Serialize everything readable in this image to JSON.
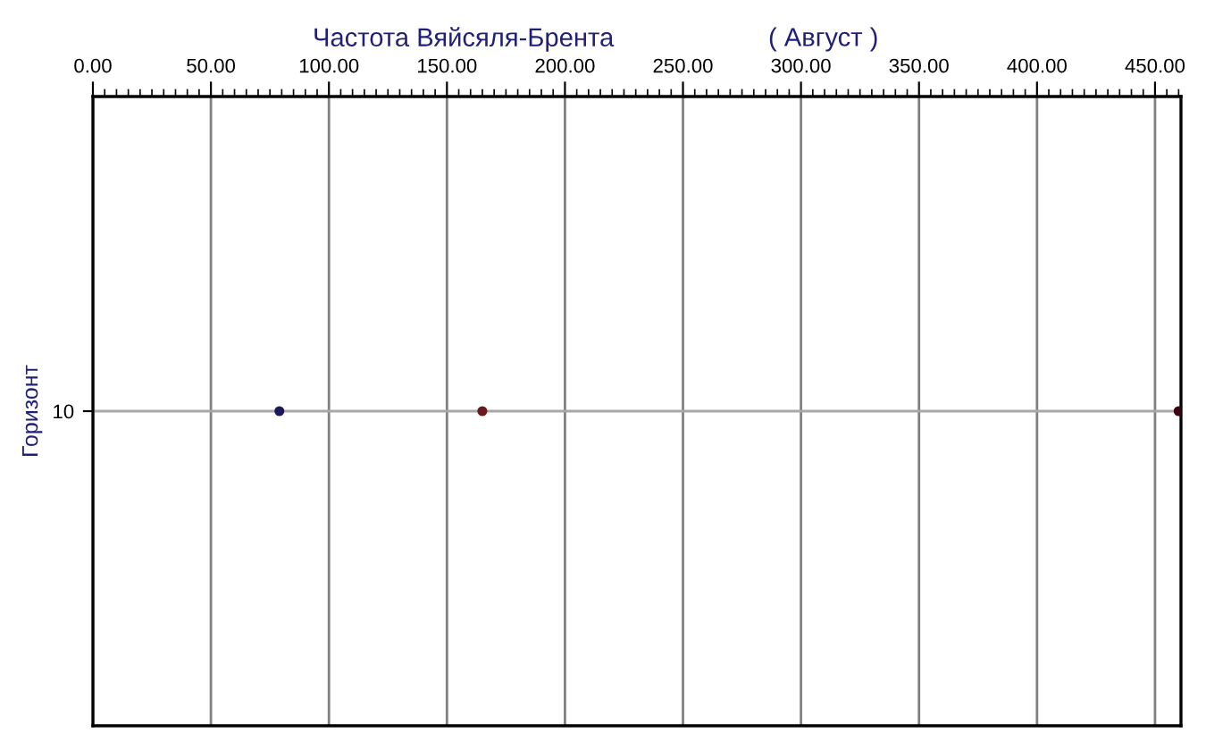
{
  "chart_data": {
    "type": "scatter",
    "orientation": "horizontal",
    "title": "Частота Вяйсяля-Брента",
    "subtitle": "( Август )",
    "ylabel": "Горизонт",
    "categories": [
      "10"
    ],
    "series": [
      {
        "color": "#1a1a5a",
        "values": [
          79
        ]
      },
      {
        "color": "#6b1a1a",
        "values": [
          165
        ]
      },
      {
        "color": "#400010",
        "values": [
          460
        ]
      }
    ],
    "xlim": [
      0,
      461
    ],
    "xticks": [
      {
        "value": 0,
        "label": "0.00"
      },
      {
        "value": 50,
        "label": "50.00"
      },
      {
        "value": 100,
        "label": "100.00"
      },
      {
        "value": 150,
        "label": "150.00"
      },
      {
        "value": 200,
        "label": "200.00"
      },
      {
        "value": 250,
        "label": "250.00"
      },
      {
        "value": 300,
        "label": "300.00"
      },
      {
        "value": 350,
        "label": "350.00"
      },
      {
        "value": 400,
        "label": "400.00"
      },
      {
        "value": 450,
        "label": "450.00"
      }
    ],
    "grid": true,
    "marker": "circle"
  }
}
